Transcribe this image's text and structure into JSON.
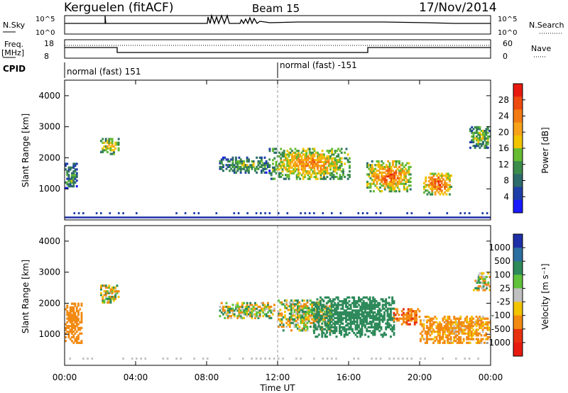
{
  "header": {
    "station": "Kerguelen (fitACF)",
    "beam": "Beam 15",
    "date": "17/Nov/2014"
  },
  "status_panels": {
    "nsky_label": "N.Sky",
    "nsky_ticks": [
      "10^5",
      "10^0"
    ],
    "nsearch_label": "N.Search",
    "nsearch_ticks": [
      "10^5",
      "10^0"
    ],
    "freq_label_1": "Freq.",
    "freq_label_2": "[MHz]",
    "freq_ticks": [
      "18",
      "8"
    ],
    "nave_label": "Nave",
    "nave_ticks": [
      "60",
      "0"
    ],
    "cpid_label": "CPID",
    "cpid_segments": [
      {
        "label": "normal (fast) 151",
        "start_hour": 0
      },
      {
        "label": "normal (fast) -151",
        "start_hour": 12
      }
    ]
  },
  "chart_data": [
    {
      "type": "heatmap",
      "title": "",
      "ylabel": "Slant Range [km]",
      "xlabel": "",
      "xlim": [
        0,
        24
      ],
      "ylim": [
        0,
        4500
      ],
      "yticks": [
        "1000",
        "2000",
        "3000",
        "4000"
      ],
      "colorbar": {
        "label": "Power [dB]",
        "ticks": [
          "4",
          "8",
          "12",
          "16",
          "20",
          "24",
          "28"
        ],
        "colors": [
          "#1a1aff",
          "#1f3fa8",
          "#2e6b6b",
          "#3c8c4c",
          "#66bb33",
          "#f2c400",
          "#f7a21a",
          "#f27a12",
          "#ee4a10",
          "#e81a10"
        ]
      },
      "regions": [
        {
          "t0": 0.0,
          "t1": 0.7,
          "r0": 1000,
          "r1": 1800,
          "level": 4
        },
        {
          "t0": 2.0,
          "t1": 3.0,
          "r0": 2100,
          "r1": 2600,
          "level": 6
        },
        {
          "t0": 8.7,
          "t1": 11.5,
          "r0": 1500,
          "r1": 2000,
          "level": 4
        },
        {
          "t0": 11.5,
          "t1": 16.0,
          "r0": 1300,
          "r1": 2300,
          "level": 7
        },
        {
          "t0": 17.0,
          "t1": 19.5,
          "r0": 900,
          "r1": 1900,
          "level": 8
        },
        {
          "t0": 20.2,
          "t1": 21.8,
          "r0": 800,
          "r1": 1500,
          "level": 9
        },
        {
          "t0": 22.8,
          "t1": 24.0,
          "r0": 2300,
          "r1": 3000,
          "level": 5
        }
      ]
    },
    {
      "type": "heatmap",
      "title": "",
      "ylabel": "Slant Range [km]",
      "xlabel": "Time UT",
      "xlim": [
        0,
        24
      ],
      "ylim": [
        0,
        4500
      ],
      "xticks": [
        "00:00",
        "04:00",
        "08:00",
        "12:00",
        "16:00",
        "20:00",
        "00:00"
      ],
      "yticks": [
        "1000",
        "2000",
        "3000",
        "4000"
      ],
      "colorbar": {
        "label": "Velocity [m s⁻¹]",
        "ticks": [
          "1000",
          "500",
          "100",
          "25",
          "-25",
          "-100",
          "-500",
          "-1000"
        ],
        "colors": [
          "#1f2fa8",
          "#2b6fa0",
          "#2e8a5a",
          "#5fc23a",
          "#c0c0c0",
          "#f2c400",
          "#f28a12",
          "#e83010",
          "#e81a10"
        ]
      },
      "regions": [
        {
          "t0": 0.0,
          "t1": 0.9,
          "r0": 700,
          "r1": 2000,
          "vel": -300
        },
        {
          "t0": 2.0,
          "t1": 3.0,
          "r0": 2000,
          "r1": 2600,
          "vel": 0
        },
        {
          "t0": 8.7,
          "t1": 11.8,
          "r0": 1500,
          "r1": 2000,
          "vel": 0
        },
        {
          "t0": 12.0,
          "t1": 15.0,
          "r0": 1100,
          "r1": 2100,
          "vel": 0
        },
        {
          "t0": 14.0,
          "t1": 18.5,
          "r0": 900,
          "r1": 2200,
          "vel": 300
        },
        {
          "t0": 18.5,
          "t1": 20.0,
          "r0": 1300,
          "r1": 1800,
          "vel": -400
        },
        {
          "t0": 20.0,
          "t1": 24.0,
          "r0": 700,
          "r1": 1600,
          "vel": -200
        },
        {
          "t0": 23.0,
          "t1": 24.0,
          "r0": 2400,
          "r1": 3000,
          "vel": 0
        }
      ]
    }
  ]
}
